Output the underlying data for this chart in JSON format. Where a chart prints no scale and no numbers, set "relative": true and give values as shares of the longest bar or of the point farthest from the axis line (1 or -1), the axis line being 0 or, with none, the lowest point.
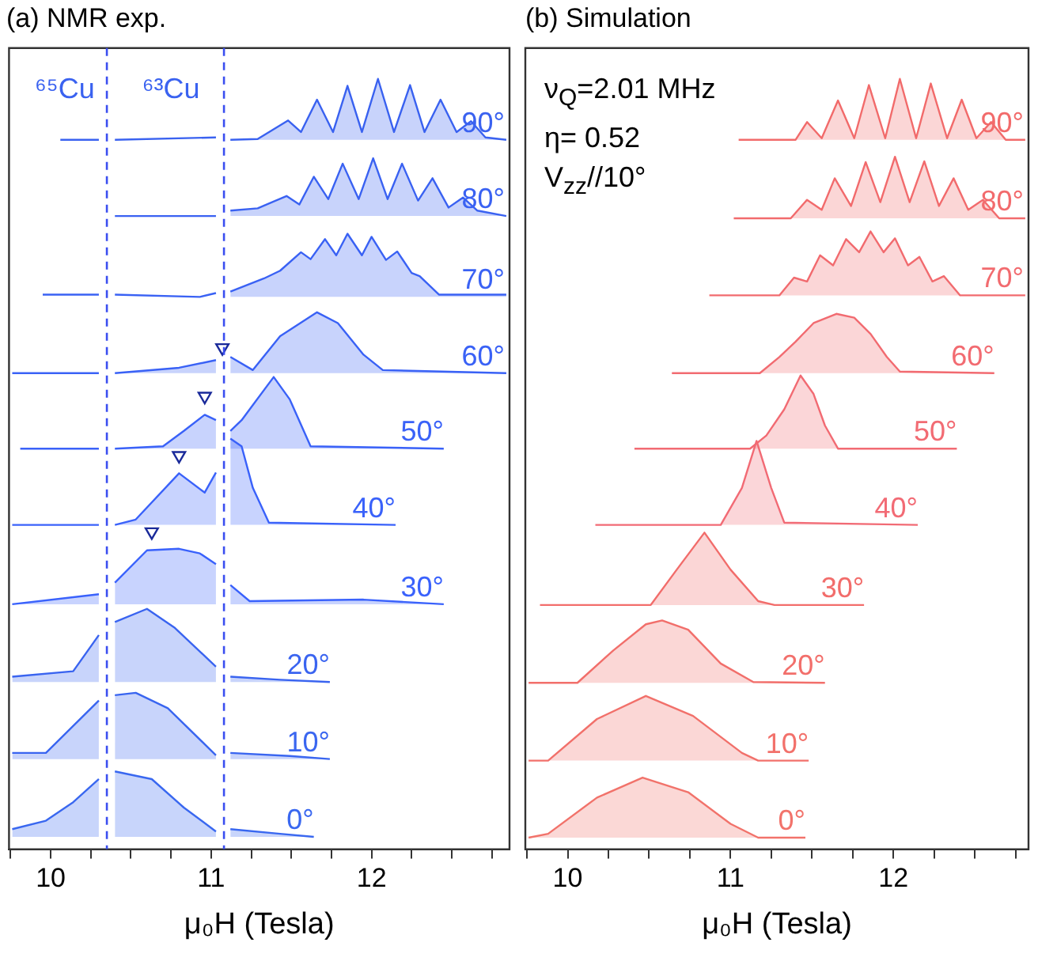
{
  "chart_data": [
    {
      "type": "line",
      "title": "(a) NMR exp.",
      "xlabel": "μ₀H (Tesla)",
      "xlim": [
        9.74,
        12.86
      ],
      "xticks": [
        {
          "value": 9.75,
          "label": null
        },
        10,
        {
          "value": 10.25,
          "label": null
        },
        {
          "value": 10.5,
          "label": null
        },
        {
          "value": 10.75,
          "label": null
        },
        11,
        {
          "value": 11.25,
          "label": null
        },
        {
          "value": 11.5,
          "label": null
        },
        {
          "value": 11.75,
          "label": null
        },
        12,
        {
          "value": 12.25,
          "label": null
        },
        {
          "value": 12.5,
          "label": null
        },
        {
          "value": 12.75,
          "label": null
        }
      ],
      "relative": true,
      "legend": false,
      "grid": false,
      "ref_lines": [
        {
          "axis": "x",
          "value": 10.35,
          "color": "#3a4ef0",
          "line_style": "dashed"
        },
        {
          "axis": "x",
          "value": 11.08,
          "color": "#3a4ef0",
          "line_style": "dashed"
        }
      ],
      "annotations": [
        "⁶⁵Cu",
        "⁶³Cu"
      ],
      "series": [
        {
          "name": "90°",
          "color": "#3a62f0",
          "x": [
            10.06,
            10.3,
            10.35,
            10.4,
            11.03,
            11.08,
            11.12,
            11.29,
            11.48,
            11.56,
            11.66,
            11.76,
            11.85,
            11.94,
            12.04,
            12.14,
            12.24,
            12.33,
            12.43,
            12.53,
            12.62,
            12.71,
            12.84
          ],
          "values": [
            0.921,
            0.921,
            null,
            0.921,
            0.924,
            null,
            0.921,
            0.922,
            0.946,
            0.931,
            0.973,
            0.931,
            0.991,
            0.931,
            1.0,
            0.931,
            0.992,
            0.931,
            0.973,
            0.931,
            0.945,
            0.924,
            0.921
          ],
          "lower": [
            null,
            null,
            null,
            null,
            null,
            null,
            0.921,
            0.921,
            0.921,
            0.921,
            0.921,
            0.921,
            0.921,
            0.921,
            0.921,
            0.921,
            0.921,
            0.921,
            0.921,
            0.921,
            0.921,
            0.921,
            0.921
          ],
          "upper": [
            null,
            null,
            null,
            null,
            null,
            null,
            0.921,
            0.922,
            0.946,
            0.931,
            0.973,
            0.931,
            0.991,
            0.931,
            1.0,
            0.931,
            0.992,
            0.931,
            0.973,
            0.931,
            0.945,
            0.924,
            0.921
          ]
        },
        {
          "name": "80°",
          "color": "#3a62f2",
          "x": [
            10.4,
            11.03,
            11.08,
            11.12,
            11.29,
            11.47,
            11.55,
            11.64,
            11.73,
            11.82,
            11.92,
            12.01,
            12.1,
            12.19,
            12.29,
            12.38,
            12.48,
            12.57,
            12.66,
            12.84
          ],
          "values": [
            0.822,
            0.822,
            null,
            0.829,
            0.832,
            0.848,
            0.837,
            0.873,
            0.844,
            0.89,
            0.844,
            0.897,
            0.844,
            0.89,
            0.842,
            0.871,
            0.833,
            0.846,
            0.829,
            0.822
          ],
          "lower": [
            null,
            null,
            null,
            0.822,
            0.822,
            0.822,
            0.822,
            0.822,
            0.822,
            0.822,
            0.822,
            0.822,
            0.822,
            0.822,
            0.822,
            0.822,
            0.822,
            0.822,
            0.822,
            0.822
          ],
          "upper": [
            null,
            null,
            null,
            0.829,
            0.832,
            0.848,
            0.837,
            0.873,
            0.844,
            0.89,
            0.844,
            0.897,
            0.844,
            0.89,
            0.842,
            0.871,
            0.833,
            0.846,
            0.829,
            0.822
          ]
        },
        {
          "name": "70°",
          "color": "#3a62f4",
          "x": [
            9.95,
            10.3,
            10.35,
            10.4,
            10.93,
            11.03,
            11.08,
            11.12,
            11.33,
            11.43,
            11.56,
            11.62,
            11.71,
            11.78,
            11.85,
            11.94,
            12.0,
            12.09,
            12.16,
            12.25,
            12.3,
            12.42,
            12.84
          ],
          "values": [
            0.72,
            0.72,
            null,
            0.72,
            0.717,
            0.722,
            null,
            0.724,
            0.741,
            0.751,
            0.775,
            0.766,
            0.792,
            0.771,
            0.799,
            0.771,
            0.795,
            0.765,
            0.776,
            0.748,
            0.744,
            0.72,
            0.72
          ],
          "lower": [
            null,
            null,
            null,
            null,
            null,
            null,
            null,
            0.717,
            0.717,
            0.717,
            0.717,
            0.717,
            0.717,
            0.717,
            0.717,
            0.717,
            0.717,
            0.717,
            0.717,
            0.717,
            0.717,
            0.717,
            0.717
          ],
          "upper": [
            null,
            null,
            null,
            null,
            null,
            null,
            null,
            0.724,
            0.741,
            0.751,
            0.775,
            0.766,
            0.792,
            0.771,
            0.799,
            0.771,
            0.795,
            0.765,
            0.776,
            0.748,
            0.744,
            0.72,
            0.72
          ]
        },
        {
          "name": "60°",
          "color": "#3a62f6",
          "x": [
            9.76,
            10.3,
            10.35,
            10.4,
            10.8,
            11.03,
            11.08,
            11.12,
            11.26,
            11.43,
            11.66,
            11.79,
            11.95,
            12.07,
            12.84
          ],
          "values": [
            0.618,
            0.618,
            null,
            0.618,
            0.625,
            0.635,
            null,
            0.639,
            0.622,
            0.666,
            0.697,
            0.683,
            0.642,
            0.622,
            0.618
          ],
          "lower": [
            null,
            null,
            null,
            0.618,
            0.618,
            0.618,
            null,
            0.618,
            0.618,
            0.618,
            0.618,
            0.618,
            0.618,
            0.618,
            0.618
          ],
          "upper": [
            null,
            null,
            null,
            0.618,
            0.625,
            0.635,
            null,
            0.639,
            0.622,
            0.666,
            0.697,
            0.683,
            0.642,
            0.622,
            0.618
          ]
        },
        {
          "name": "50°",
          "color": "#3a62f8",
          "x": [
            9.81,
            10.3,
            10.35,
            10.4,
            10.7,
            10.83,
            10.96,
            11.03,
            11.08,
            11.12,
            11.19,
            11.39,
            11.49,
            11.62,
            12.45
          ],
          "values": [
            0.52,
            0.52,
            null,
            0.52,
            0.523,
            0.543,
            0.564,
            0.557,
            null,
            0.543,
            0.557,
            0.613,
            0.584,
            0.523,
            0.52
          ],
          "lower": [
            null,
            null,
            null,
            0.52,
            0.52,
            0.52,
            0.52,
            0.52,
            null,
            0.52,
            0.52,
            0.52,
            0.52,
            0.52,
            0.52
          ],
          "upper": [
            null,
            null,
            null,
            0.52,
            0.523,
            0.543,
            0.564,
            0.557,
            null,
            0.543,
            0.557,
            0.613,
            0.584,
            0.523,
            0.52
          ]
        },
        {
          "name": "40°",
          "color": "#3a62fa",
          "x": [
            9.76,
            10.3,
            10.35,
            10.4,
            10.53,
            10.8,
            10.96,
            11.03,
            11.08,
            11.12,
            11.19,
            11.26,
            11.36,
            12.15
          ],
          "values": [
            0.421,
            0.421,
            null,
            0.421,
            0.428,
            0.488,
            0.463,
            0.489,
            null,
            0.533,
            0.523,
            0.469,
            0.424,
            0.421
          ],
          "lower": [
            null,
            null,
            null,
            0.421,
            0.421,
            0.421,
            0.421,
            0.421,
            null,
            0.421,
            0.421,
            0.421,
            0.421,
            0.421
          ],
          "upper": [
            null,
            null,
            null,
            0.421,
            0.428,
            0.488,
            0.463,
            0.489,
            null,
            0.533,
            0.523,
            0.469,
            0.424,
            0.421
          ]
        },
        {
          "name": "30°",
          "color": "#3a62fc",
          "x": [
            9.76,
            10.3,
            10.35,
            10.4,
            10.6,
            10.8,
            10.93,
            11.03,
            11.08,
            11.12,
            11.24,
            11.95,
            12.45
          ],
          "values": [
            0.318,
            0.331,
            null,
            0.346,
            0.388,
            0.39,
            0.384,
            0.37,
            null,
            0.343,
            0.322,
            0.324,
            0.318
          ],
          "lower": [
            0.318,
            0.318,
            null,
            0.318,
            0.318,
            0.318,
            0.318,
            0.318,
            null,
            0.318,
            0.318,
            0.318,
            0.318
          ],
          "upper": [
            0.318,
            0.331,
            null,
            0.346,
            0.388,
            0.39,
            0.384,
            0.37,
            null,
            0.343,
            0.322,
            0.324,
            0.318
          ]
        },
        {
          "name": "20°",
          "color": "#3a64f0",
          "x": [
            9.76,
            10.14,
            10.3,
            10.35,
            10.4,
            10.6,
            10.77,
            11.03,
            11.08,
            11.12,
            11.43,
            11.74
          ],
          "values": [
            0.224,
            0.231,
            0.278,
            null,
            0.295,
            0.312,
            0.288,
            0.237,
            null,
            0.224,
            0.22,
            0.217
          ],
          "lower": [
            0.217,
            0.217,
            0.217,
            null,
            0.217,
            0.217,
            0.217,
            0.217,
            null,
            0.217,
            0.217,
            0.217
          ],
          "upper": [
            0.224,
            0.231,
            0.278,
            null,
            0.295,
            0.312,
            0.288,
            0.237,
            null,
            0.224,
            0.22,
            0.217
          ]
        },
        {
          "name": "10°",
          "color": "#3a66f0",
          "x": [
            9.76,
            9.97,
            10.3,
            10.35,
            10.4,
            10.53,
            10.73,
            11.03,
            11.08,
            11.12,
            11.49,
            11.74
          ],
          "values": [
            0.125,
            0.125,
            0.193,
            null,
            0.2,
            0.203,
            0.183,
            0.122,
            null,
            0.125,
            0.121,
            0.117
          ],
          "lower": [
            0.117,
            0.117,
            0.117,
            null,
            0.117,
            0.117,
            0.117,
            0.117,
            null,
            0.117,
            0.117,
            0.117
          ],
          "upper": [
            0.125,
            0.125,
            0.193,
            null,
            0.2,
            0.203,
            0.183,
            0.122,
            null,
            0.125,
            0.121,
            0.117
          ]
        },
        {
          "name": "0°",
          "color": "#3a68f0",
          "x": [
            9.76,
            9.97,
            10.14,
            10.3,
            10.35,
            10.4,
            10.63,
            10.83,
            11.03,
            11.08,
            11.12,
            11.43,
            11.64
          ],
          "values": [
            0.026,
            0.037,
            0.061,
            0.091,
            null,
            0.101,
            0.091,
            0.054,
            0.023,
            null,
            0.026,
            0.02,
            0.016
          ],
          "lower": [
            0.016,
            0.016,
            0.016,
            0.016,
            null,
            0.016,
            0.016,
            0.016,
            0.016,
            null,
            0.016,
            0.016,
            0.016
          ],
          "upper": [
            0.026,
            0.037,
            0.061,
            0.091,
            null,
            0.101,
            0.091,
            0.054,
            0.023,
            null,
            0.026,
            0.02,
            0.016
          ]
        },
        {
          "type": "scatter",
          "marker": "triangle",
          "color": "#1a2a9a",
          "x": [
            11.07,
            10.96,
            10.8,
            10.63
          ],
          "values": [
            0.651,
            0.588,
            0.511,
            0.412
          ]
        }
      ]
    },
    {
      "type": "line",
      "title": "(b) Simulation",
      "xlabel": "μ₀H (Tesla)",
      "xlim": [
        9.74,
        12.83
      ],
      "xticks": [
        {
          "value": 9.75,
          "label": null
        },
        10,
        {
          "value": 10.25,
          "label": null
        },
        {
          "value": 10.5,
          "label": null
        },
        {
          "value": 10.75,
          "label": null
        },
        11,
        {
          "value": 11.25,
          "label": null
        },
        {
          "value": 11.5,
          "label": null
        },
        {
          "value": 11.75,
          "label": null
        },
        12,
        {
          "value": 12.25,
          "label": null
        },
        {
          "value": 12.5,
          "label": null
        },
        {
          "value": 12.75,
          "label": null
        }
      ],
      "relative": true,
      "legend": false,
      "grid": false,
      "annotations": [
        "ν$_{Q}$=2.01 MHz",
        "η= 0.52",
        "V$_{zz}$//10°"
      ],
      "series": [
        {
          "name": "90°",
          "color": "#f26b6b",
          "x": [
            11.05,
            11.4,
            11.47,
            11.56,
            11.66,
            11.76,
            11.85,
            11.95,
            12.04,
            12.14,
            12.23,
            12.33,
            12.42,
            12.51,
            12.6,
            12.69,
            12.81
          ],
          "values": [
            0.921,
            0.921,
            0.944,
            0.923,
            0.972,
            0.923,
            0.992,
            0.923,
            1.0,
            0.923,
            0.994,
            0.923,
            0.973,
            0.923,
            0.944,
            0.921,
            0.921
          ],
          "lower": [
            0.921,
            0.921,
            0.921,
            0.921,
            0.921,
            0.921,
            0.921,
            0.921,
            0.921,
            0.921,
            0.921,
            0.921,
            0.921,
            0.921,
            0.921,
            0.921,
            0.921
          ],
          "upper": [
            0.921,
            0.921,
            0.944,
            0.923,
            0.972,
            0.923,
            0.992,
            0.923,
            1.0,
            0.923,
            0.994,
            0.923,
            0.973,
            0.923,
            0.944,
            0.921,
            0.921
          ]
        },
        {
          "name": "80°",
          "color": "#f26b6d",
          "x": [
            11.02,
            11.37,
            11.47,
            11.56,
            11.64,
            11.74,
            11.83,
            11.92,
            12.01,
            12.1,
            12.19,
            12.28,
            12.37,
            12.46,
            12.55,
            12.65,
            12.81
          ],
          "values": [
            0.819,
            0.819,
            0.843,
            0.83,
            0.871,
            0.835,
            0.892,
            0.84,
            0.899,
            0.84,
            0.893,
            0.835,
            0.871,
            0.83,
            0.843,
            0.819,
            0.819
          ],
          "lower": [
            0.819,
            0.819,
            0.819,
            0.819,
            0.819,
            0.819,
            0.819,
            0.819,
            0.819,
            0.819,
            0.819,
            0.819,
            0.819,
            0.819,
            0.819,
            0.819,
            0.819
          ],
          "upper": [
            0.819,
            0.819,
            0.843,
            0.83,
            0.871,
            0.835,
            0.892,
            0.84,
            0.899,
            0.84,
            0.893,
            0.835,
            0.871,
            0.83,
            0.843,
            0.819,
            0.819
          ]
        },
        {
          "name": "70°",
          "color": "#f26b6f",
          "x": [
            10.87,
            11.3,
            11.39,
            11.47,
            11.55,
            11.63,
            11.71,
            11.79,
            11.86,
            11.94,
            12.01,
            12.09,
            12.16,
            12.24,
            12.31,
            12.41,
            12.81
          ],
          "values": [
            0.719,
            0.719,
            0.742,
            0.737,
            0.771,
            0.758,
            0.792,
            0.775,
            0.802,
            0.775,
            0.793,
            0.758,
            0.769,
            0.737,
            0.744,
            0.719,
            0.719
          ],
          "lower": [
            0.719,
            0.719,
            0.719,
            0.719,
            0.719,
            0.719,
            0.719,
            0.719,
            0.719,
            0.719,
            0.719,
            0.719,
            0.719,
            0.719,
            0.719,
            0.719,
            0.719
          ],
          "upper": [
            0.719,
            0.719,
            0.742,
            0.737,
            0.771,
            0.758,
            0.792,
            0.775,
            0.802,
            0.775,
            0.793,
            0.758,
            0.769,
            0.737,
            0.744,
            0.719,
            0.719
          ]
        },
        {
          "name": "60°",
          "color": "#f26b71",
          "x": [
            10.64,
            11.18,
            11.3,
            11.4,
            11.51,
            11.65,
            11.76,
            11.86,
            11.96,
            12.04,
            12.62
          ],
          "values": [
            0.618,
            0.618,
            0.639,
            0.659,
            0.683,
            0.695,
            0.69,
            0.669,
            0.639,
            0.62,
            0.618
          ],
          "lower": [
            0.618,
            0.618,
            0.618,
            0.618,
            0.618,
            0.618,
            0.618,
            0.618,
            0.618,
            0.618,
            0.618
          ],
          "upper": [
            0.618,
            0.618,
            0.639,
            0.659,
            0.683,
            0.695,
            0.69,
            0.669,
            0.639,
            0.62,
            0.618
          ]
        },
        {
          "name": "50°",
          "color": "#f26b73",
          "x": [
            10.41,
            11.12,
            11.22,
            11.33,
            11.43,
            11.51,
            11.58,
            11.66,
            12.39
          ],
          "values": [
            0.52,
            0.52,
            0.537,
            0.571,
            0.615,
            0.591,
            0.55,
            0.52,
            0.52
          ],
          "lower": [
            0.52,
            0.52,
            0.52,
            0.52,
            0.52,
            0.52,
            0.52,
            0.52,
            0.52
          ],
          "upper": [
            0.52,
            0.52,
            0.537,
            0.571,
            0.615,
            0.591,
            0.55,
            0.52,
            0.52
          ]
        },
        {
          "name": "40°",
          "color": "#f26b75",
          "x": [
            10.17,
            10.94,
            11.07,
            11.16,
            11.25,
            11.33,
            12.15
          ],
          "values": [
            0.421,
            0.421,
            0.469,
            0.53,
            0.469,
            0.424,
            0.421
          ],
          "lower": [
            0.421,
            0.421,
            0.421,
            0.421,
            0.421,
            0.421,
            0.421
          ],
          "upper": [
            0.421,
            0.421,
            0.469,
            0.53,
            0.469,
            0.424,
            0.421
          ]
        },
        {
          "name": "30°",
          "color": "#f26d6b",
          "x": [
            9.83,
            10.51,
            10.67,
            10.84,
            11.0,
            11.17,
            11.27,
            11.82
          ],
          "values": [
            0.317,
            0.317,
            0.363,
            0.411,
            0.363,
            0.322,
            0.317,
            0.317
          ],
          "lower": [
            0.317,
            0.317,
            0.317,
            0.317,
            0.317,
            0.317,
            0.317,
            0.317
          ],
          "upper": [
            0.317,
            0.317,
            0.363,
            0.411,
            0.363,
            0.322,
            0.317,
            0.317
          ]
        },
        {
          "name": "20°",
          "color": "#f26f6b",
          "x": [
            9.76,
            10.06,
            10.28,
            10.48,
            10.58,
            10.74,
            10.94,
            11.14,
            11.58
          ],
          "values": [
            0.216,
            0.216,
            0.258,
            0.292,
            0.297,
            0.285,
            0.241,
            0.217,
            0.216
          ],
          "lower": [
            0.216,
            0.216,
            0.216,
            0.216,
            0.216,
            0.216,
            0.216,
            0.216,
            0.216
          ],
          "upper": [
            0.216,
            0.216,
            0.258,
            0.292,
            0.297,
            0.285,
            0.241,
            0.217,
            0.216
          ]
        },
        {
          "name": "10°",
          "color": "#f2716b",
          "x": [
            9.76,
            9.88,
            10.18,
            10.48,
            10.77,
            11.07,
            11.17,
            11.48
          ],
          "values": [
            0.115,
            0.115,
            0.169,
            0.199,
            0.173,
            0.125,
            0.115,
            0.115
          ],
          "lower": [
            0.115,
            0.115,
            0.115,
            0.115,
            0.115,
            0.115,
            0.115,
            0.115
          ],
          "upper": [
            0.115,
            0.115,
            0.169,
            0.199,
            0.173,
            0.125,
            0.115,
            0.115
          ]
        },
        {
          "name": "0°",
          "color": "#f2736b",
          "x": [
            9.76,
            9.88,
            10.18,
            10.46,
            10.74,
            11.0,
            11.17,
            11.46
          ],
          "values": [
            0.015,
            0.02,
            0.067,
            0.093,
            0.074,
            0.033,
            0.015,
            0.015
          ],
          "lower": [
            0.015,
            0.015,
            0.015,
            0.015,
            0.015,
            0.015,
            0.015,
            0.015
          ],
          "upper": [
            0.015,
            0.02,
            0.067,
            0.093,
            0.074,
            0.033,
            0.015,
            0.015
          ]
        }
      ]
    }
  ]
}
